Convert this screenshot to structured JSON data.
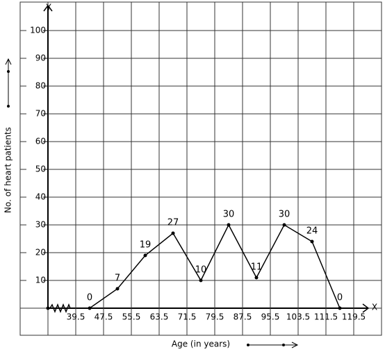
{
  "chart_data": {
    "type": "line",
    "x_axis_name": "X",
    "y_axis_name": "Y",
    "x_label": "Age (in years)",
    "y_label": "No. of heart patients",
    "x": [
      43.5,
      51.5,
      59.5,
      67.5,
      75.5,
      83.5,
      91.5,
      99.5,
      107.5,
      115.5
    ],
    "series": [
      {
        "color": "#000000",
        "values": [
          0,
          7,
          19,
          27,
          10,
          30,
          11,
          30,
          24,
          0
        ]
      }
    ],
    "xlim": [
      31.5,
      123.5
    ],
    "xticks": [
      39.5,
      47.5,
      55.5,
      63.5,
      71.5,
      79.5,
      87.5,
      95.5,
      103.5,
      111.5,
      119.5
    ],
    "ylim": [
      0,
      110
    ],
    "yticks": [
      10,
      20,
      30,
      40,
      50,
      60,
      70,
      80,
      90,
      100
    ],
    "grid": true
  }
}
